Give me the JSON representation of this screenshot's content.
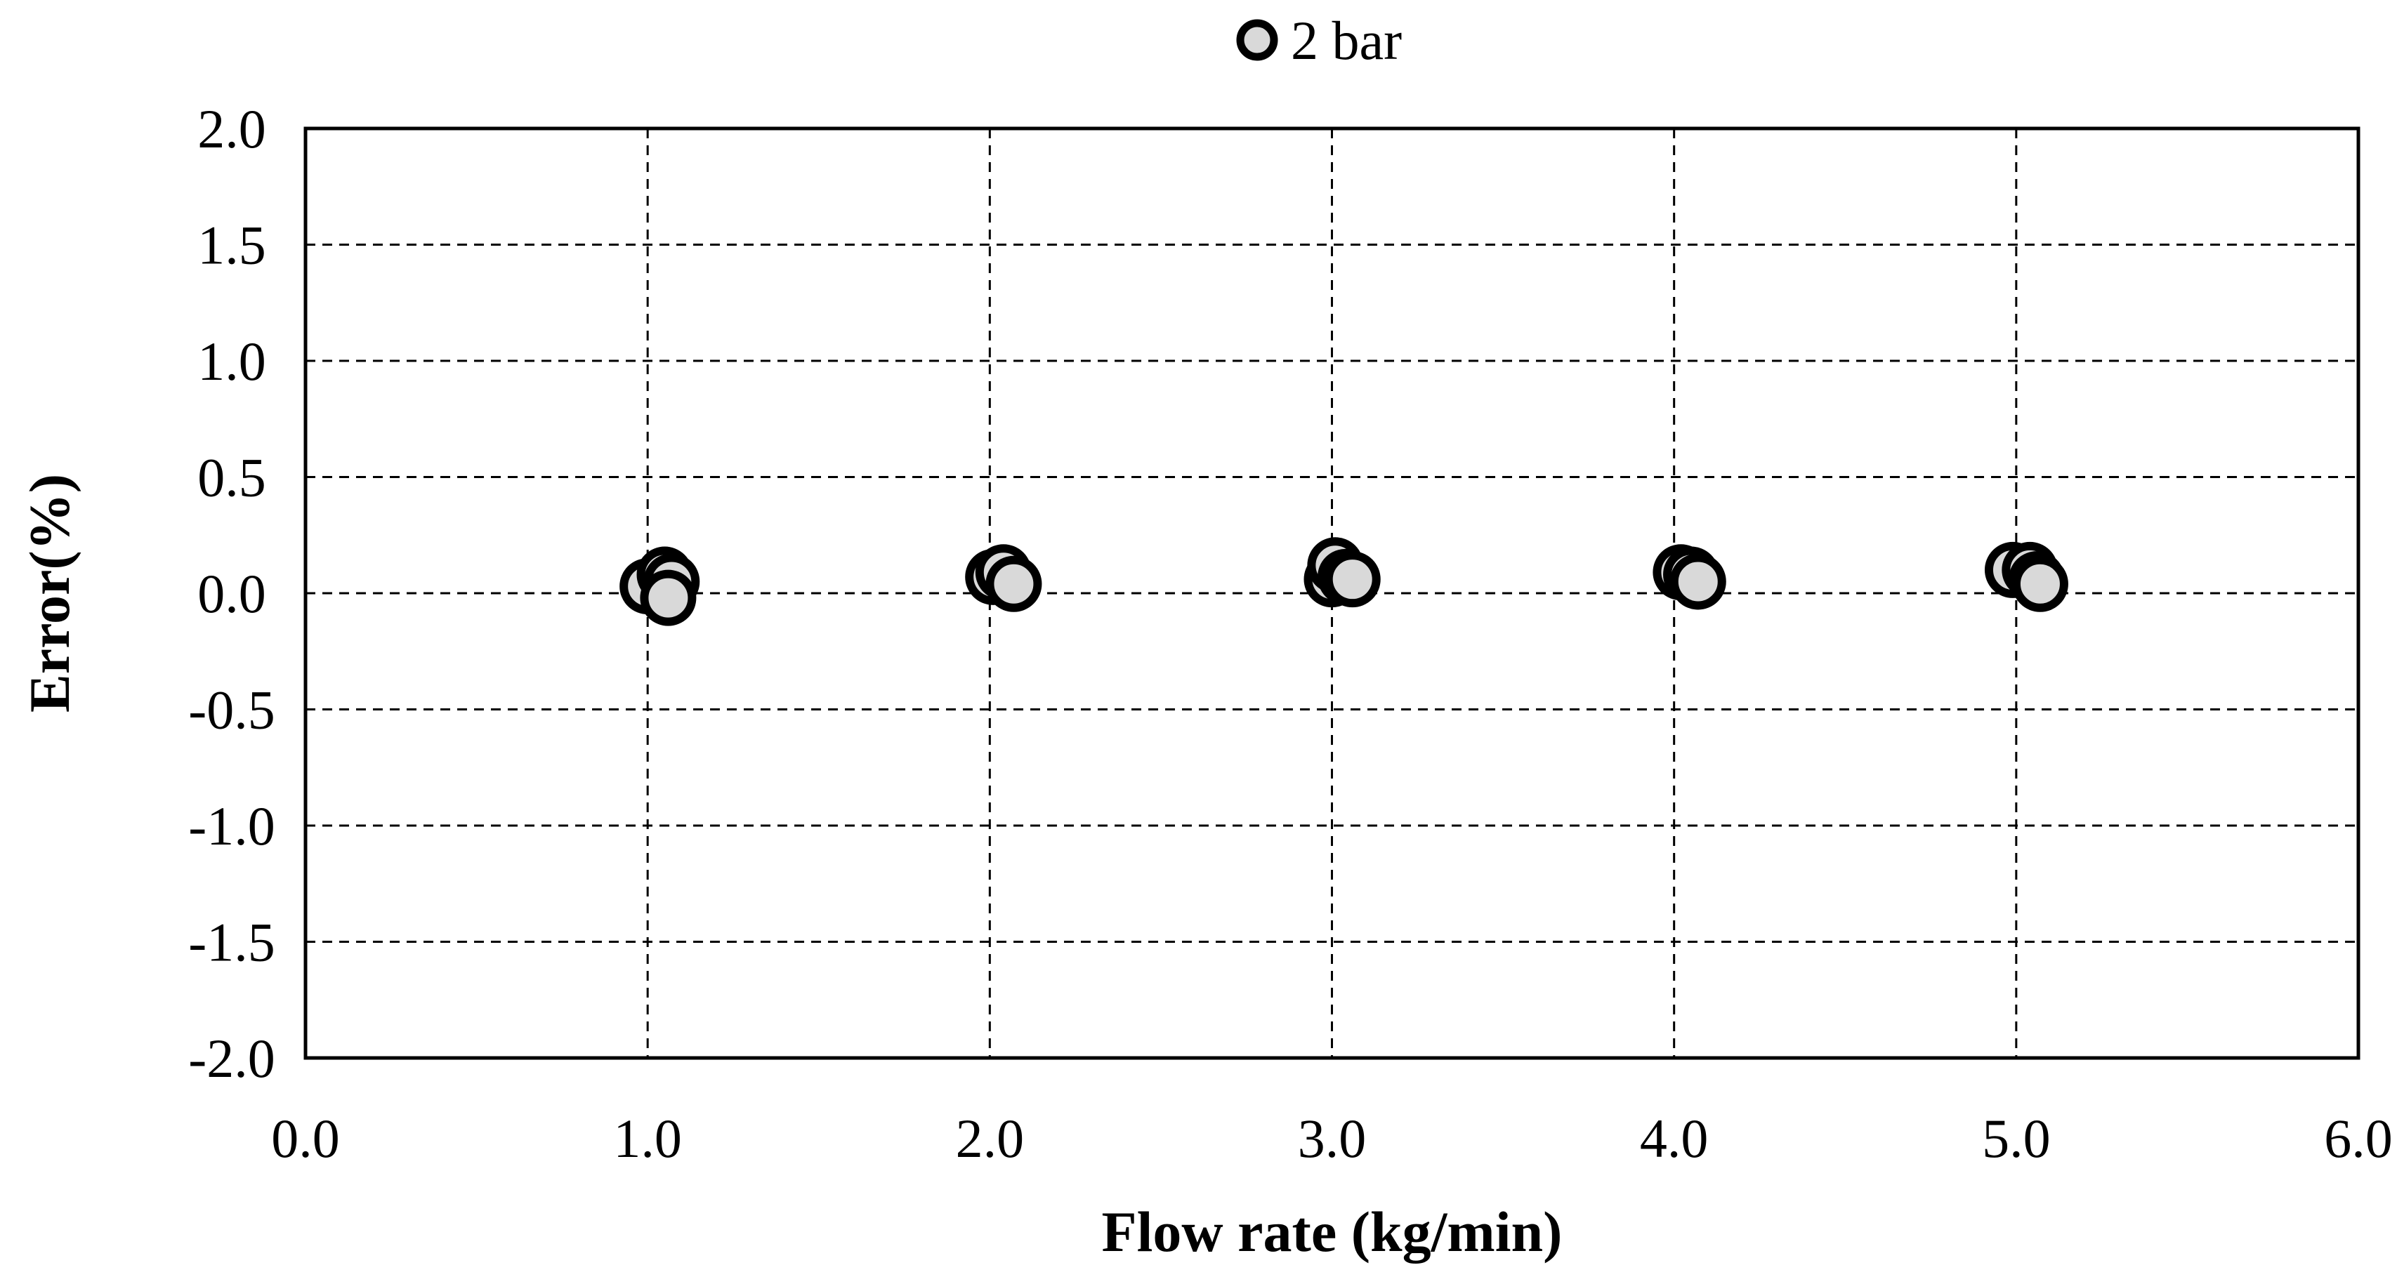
{
  "chart_data": {
    "type": "scatter",
    "title": "",
    "xlabel": "Flow rate (kg/min)",
    "ylabel": "Error(%)",
    "xlim": [
      0.0,
      6.0
    ],
    "ylim": [
      -2.0,
      2.0
    ],
    "xticks": [
      0.0,
      1.0,
      2.0,
      3.0,
      4.0,
      5.0,
      6.0
    ],
    "yticks": [
      -2.0,
      -1.5,
      -1.0,
      -0.5,
      0.0,
      0.5,
      1.0,
      1.5,
      2.0
    ],
    "xtick_labels": [
      "0.0",
      "1.0",
      "2.0",
      "3.0",
      "4.0",
      "5.0",
      "6.0"
    ],
    "ytick_labels": [
      "-2.0",
      "-1.5",
      "-1.0",
      "-0.5",
      "0.0",
      "0.5",
      "1.0",
      "1.5",
      "2.0"
    ],
    "grid": true,
    "grid_style": "dashed",
    "legend_position": "top-center",
    "series": [
      {
        "name": "2 bar",
        "marker": "circle",
        "fill_color": "#d9d9d9",
        "edge_color": "#000000",
        "points": [
          {
            "x": 1.0,
            "y": 0.03
          },
          {
            "x": 1.05,
            "y": 0.08
          },
          {
            "x": 1.07,
            "y": 0.05
          },
          {
            "x": 1.06,
            "y": -0.02
          },
          {
            "x": 2.01,
            "y": 0.07
          },
          {
            "x": 2.04,
            "y": 0.09
          },
          {
            "x": 2.07,
            "y": 0.04
          },
          {
            "x": 3.0,
            "y": 0.06
          },
          {
            "x": 3.01,
            "y": 0.12
          },
          {
            "x": 3.04,
            "y": 0.07
          },
          {
            "x": 3.06,
            "y": 0.06
          },
          {
            "x": 4.02,
            "y": 0.09
          },
          {
            "x": 4.05,
            "y": 0.08
          },
          {
            "x": 4.07,
            "y": 0.05
          },
          {
            "x": 4.99,
            "y": 0.1
          },
          {
            "x": 5.04,
            "y": 0.1
          },
          {
            "x": 5.06,
            "y": 0.06
          },
          {
            "x": 5.07,
            "y": 0.04
          }
        ]
      }
    ]
  }
}
